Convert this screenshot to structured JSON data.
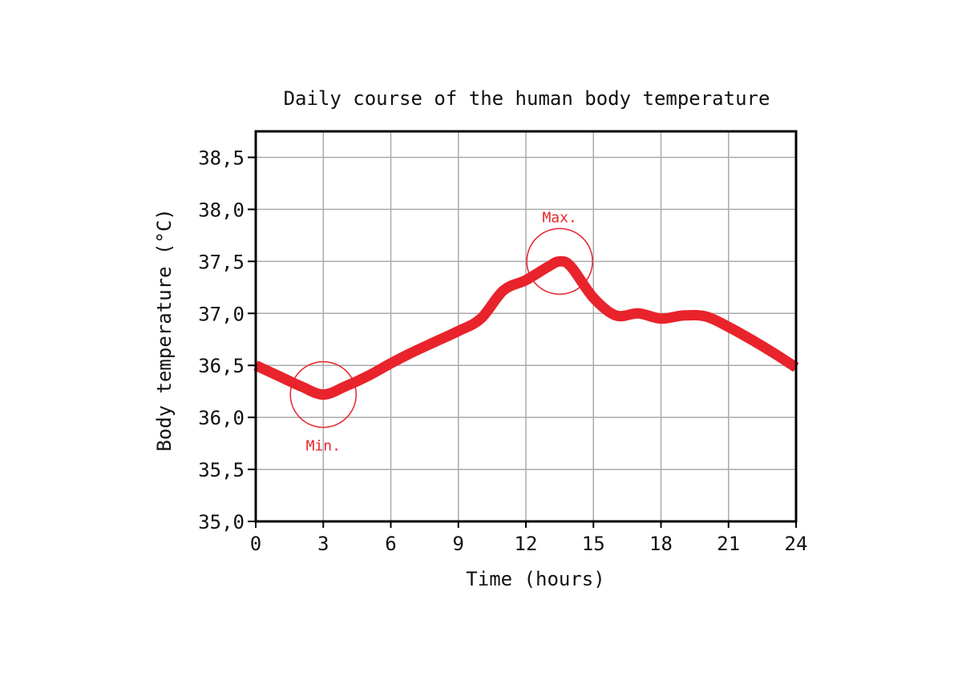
{
  "chart_data": {
    "type": "line",
    "title": "Daily course of the human body temperature",
    "xlabel": "Time (hours)",
    "ylabel": "Body temperature (°C)",
    "xlim": [
      0,
      24
    ],
    "ylim": [
      35.0,
      38.75
    ],
    "x_ticks": [
      0,
      3,
      6,
      9,
      12,
      15,
      18,
      21,
      24
    ],
    "x_tick_labels": [
      "0",
      "3",
      "6",
      "9",
      "12",
      "15",
      "18",
      "21",
      "24"
    ],
    "y_ticks": [
      35.0,
      35.5,
      36.0,
      36.5,
      37.0,
      37.5,
      38.0,
      38.5
    ],
    "y_tick_labels": [
      "35,0",
      "35,5",
      "36,0",
      "36,5",
      "37,0",
      "37,5",
      "38,0",
      "38,5"
    ],
    "grid": true,
    "series": [
      {
        "color": "#e8232b",
        "x": [
          0,
          1,
          2,
          3,
          4,
          5,
          6,
          7,
          8,
          9,
          10,
          11,
          12,
          13,
          13.5,
          14,
          15,
          16,
          17,
          18,
          19,
          20,
          21,
          22,
          23,
          24
        ],
        "y": [
          36.5,
          36.4,
          36.3,
          36.22,
          36.3,
          36.4,
          36.52,
          36.63,
          36.73,
          36.83,
          36.95,
          37.22,
          37.32,
          37.45,
          37.5,
          37.45,
          37.15,
          36.98,
          37.0,
          36.95,
          36.98,
          36.97,
          36.87,
          36.75,
          36.62,
          36.48
        ]
      }
    ],
    "annotations": [
      {
        "text": "Max.",
        "x": 13.5,
        "y": 37.5,
        "label_position": "above"
      },
      {
        "text": "Min.",
        "x": 3,
        "y": 36.22,
        "label_position": "below"
      }
    ],
    "colors": {
      "line": "#e8232b",
      "annotation": "#e8232b",
      "grid": "#aaaaaa",
      "axes": "#000000"
    }
  }
}
